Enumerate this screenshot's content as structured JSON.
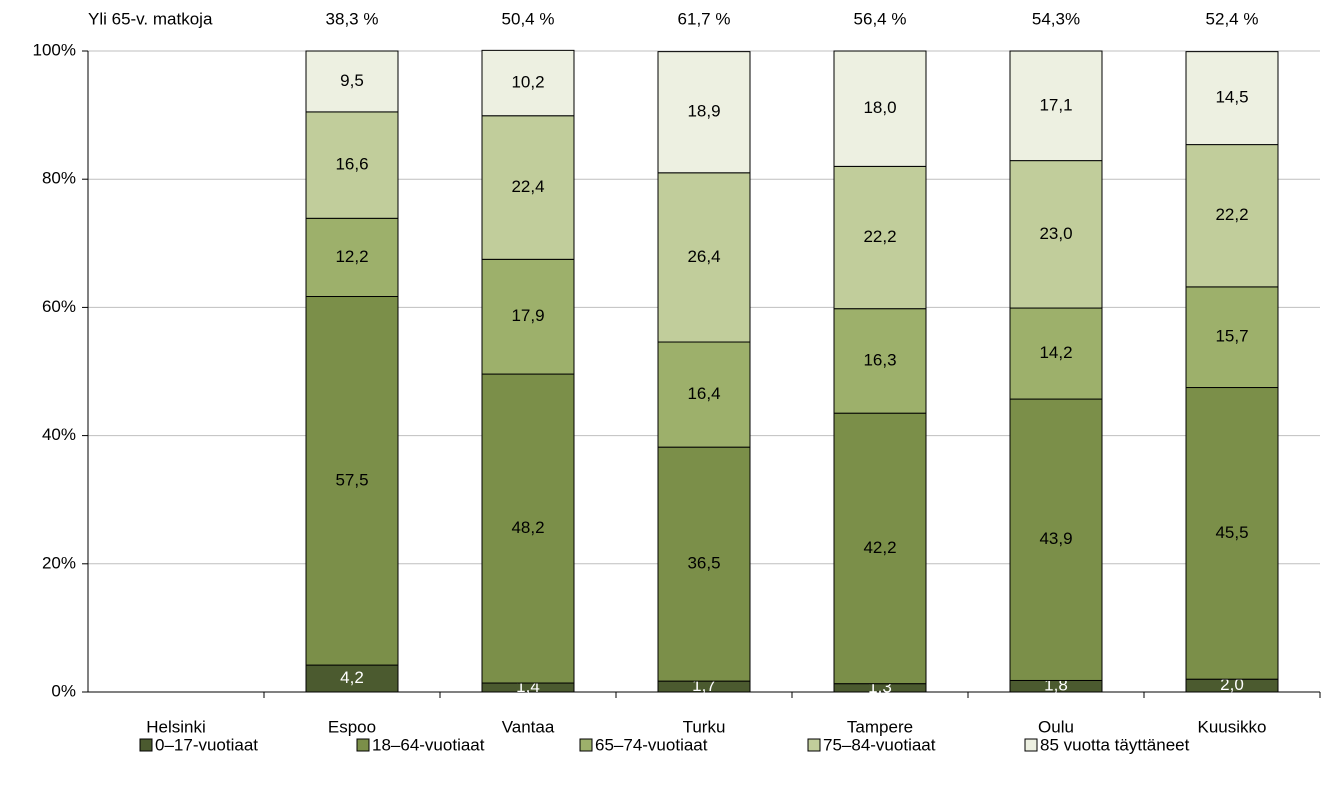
{
  "chart_data": {
    "type": "stacked_bar",
    "annotation": "Yli 65-v. matkoja",
    "top_labels": [
      null,
      "38,3 %",
      "50,4 %",
      "61,7 %",
      "56,4 %",
      "54,3%",
      "52,4 %"
    ],
    "categories": [
      "Helsinki",
      "Espoo",
      "Vantaa",
      "Turku",
      "Tampere",
      "Oulu",
      "Kuusikko"
    ],
    "series": [
      {
        "name": "0–17-vuotiaat",
        "color": "#4b5a2f",
        "label_color": "#ffffff",
        "values": [
          null,
          4.2,
          1.4,
          1.7,
          1.3,
          1.8,
          2.0
        ],
        "value_labels": [
          null,
          "4,2",
          "1,4",
          "1,7",
          "1,3",
          "1,8",
          "2,0"
        ]
      },
      {
        "name": "18–64-vuotiaat",
        "color": "#7b8f49",
        "label_color": "#000000",
        "values": [
          null,
          57.5,
          48.2,
          36.5,
          42.2,
          43.9,
          45.5
        ],
        "value_labels": [
          null,
          "57,5",
          "48,2",
          "36,5",
          "42,2",
          "43,9",
          "45,5"
        ]
      },
      {
        "name": "65–74-vuotiaat",
        "color": "#9db06b",
        "label_color": "#000000",
        "values": [
          null,
          12.2,
          17.9,
          16.4,
          16.3,
          14.2,
          15.7
        ],
        "value_labels": [
          null,
          "12,2",
          "17,9",
          "16,4",
          "16,3",
          "14,2",
          "15,7"
        ]
      },
      {
        "name": "75–84-vuotiaat",
        "color": "#c1cd9b",
        "label_color": "#000000",
        "values": [
          null,
          16.6,
          22.4,
          26.4,
          22.2,
          23.0,
          22.2
        ],
        "value_labels": [
          null,
          "16,6",
          "22,4",
          "26,4",
          "22,2",
          "23,0",
          "22,2"
        ]
      },
      {
        "name": "85 vuotta täyttäneet",
        "color": "#edf0e1",
        "label_color": "#000000",
        "values": [
          null,
          9.5,
          10.2,
          18.9,
          18.0,
          17.1,
          14.5
        ],
        "value_labels": [
          null,
          "9,5",
          "10,2",
          "18,9",
          "18,0",
          "17,1",
          "14,5"
        ]
      }
    ],
    "ylim": [
      0,
      100
    ],
    "yticks": [
      {
        "value": 0,
        "label": "0%"
      },
      {
        "value": 20,
        "label": "20%"
      },
      {
        "value": 40,
        "label": "40%"
      },
      {
        "value": 60,
        "label": "60%"
      },
      {
        "value": 80,
        "label": "80%"
      },
      {
        "value": 100,
        "label": "100%"
      }
    ],
    "grid": true
  }
}
